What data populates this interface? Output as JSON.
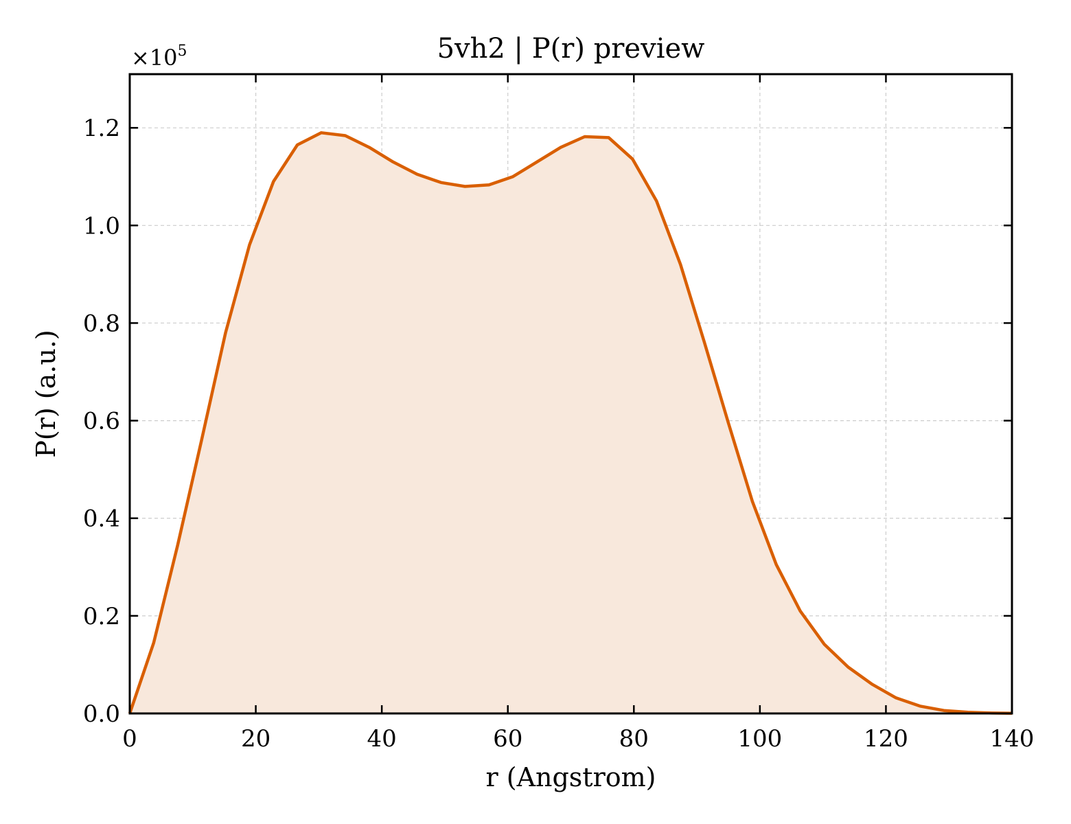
{
  "chart_data": {
    "type": "area",
    "title": "5vh2 | P(r) preview",
    "xlabel": "r (Angstrom)",
    "ylabel": "P(r) (a.u.)",
    "y_multiplier": "×10",
    "y_multiplier_exp": "5",
    "xlim": [
      0,
      140
    ],
    "ylim": [
      0,
      131000
    ],
    "xticks": [
      0,
      20,
      40,
      60,
      80,
      100,
      120,
      140
    ],
    "xtick_labels": [
      "0",
      "20",
      "40",
      "60",
      "80",
      "100",
      "120",
      "140"
    ],
    "yticks": [
      0,
      20000,
      40000,
      60000,
      80000,
      100000,
      120000
    ],
    "ytick_labels": [
      "0.0",
      "0.2",
      "0.4",
      "0.6",
      "0.8",
      "1.0",
      "1.2"
    ],
    "grid": true,
    "series": [
      {
        "color": "#d95f02",
        "fill_color": "#f8e8dc",
        "x": [
          0,
          3.8,
          7.6,
          11.4,
          15.2,
          19.0,
          22.8,
          26.6,
          30.4,
          34.2,
          38.0,
          41.8,
          45.6,
          49.4,
          53.2,
          57.0,
          60.8,
          64.6,
          68.4,
          72.2,
          76.0,
          79.8,
          83.6,
          87.4,
          91.2,
          95.0,
          98.8,
          102.6,
          106.4,
          110.2,
          114.0,
          117.8,
          121.6,
          125.4,
          129.2,
          133.0,
          136.8,
          140.0
        ],
        "y": [
          0,
          14500,
          34500,
          56000,
          78000,
          96000,
          109000,
          116500,
          119000,
          118400,
          116000,
          113000,
          110500,
          108800,
          108000,
          108300,
          110000,
          113000,
          116000,
          118200,
          118000,
          113600,
          105000,
          92000,
          76000,
          59500,
          43500,
          30500,
          21000,
          14200,
          9500,
          6000,
          3200,
          1500,
          600,
          250,
          80,
          30
        ]
      }
    ]
  }
}
